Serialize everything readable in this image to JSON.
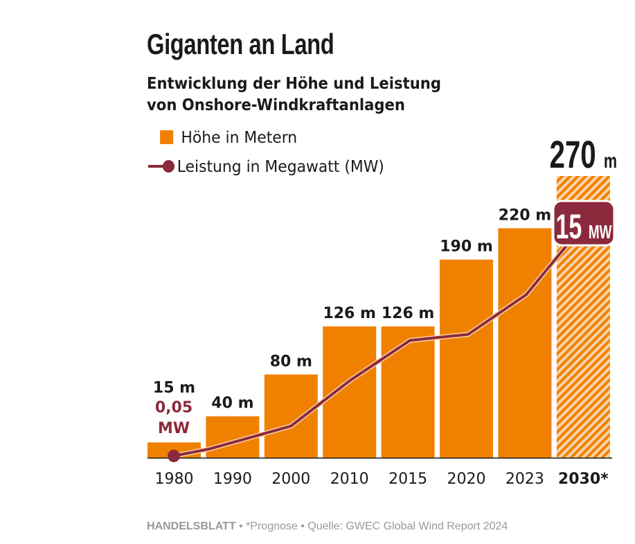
{
  "title": "Giganten an Land",
  "subtitle_line1": "Entwicklung der Höhe und Leistung",
  "subtitle_line2": "von Onshore-Windkraftanlagen",
  "legend": {
    "bars": "Höhe in Metern",
    "line": "Leistung in Megawatt (MW)"
  },
  "colors": {
    "bar": "#f08100",
    "line": "#8b2a3c",
    "text": "#1a1a1a"
  },
  "footer": {
    "brand": "HANDELSBLATT",
    "note": " • *Prognose • Quelle: GWEC Global Wind Report 2024"
  },
  "chart_data": {
    "type": "bar",
    "categories": [
      "1980",
      "1990",
      "2000",
      "2010",
      "2015",
      "2020",
      "2023",
      "2030*"
    ],
    "series": [
      {
        "name": "Höhe in Metern",
        "type": "bar",
        "values": [
          15,
          40,
          80,
          126,
          126,
          190,
          220,
          270
        ],
        "labels": [
          "15 m",
          "40 m",
          "80 m",
          "126 m",
          "126 m",
          "190 m",
          "220 m",
          "270 m"
        ],
        "forecast_index": 7
      },
      {
        "name": "Leistung in Megawatt (MW)",
        "type": "line",
        "values": [
          0.05,
          0.5,
          2,
          5,
          7.6,
          8,
          10.6,
          15
        ],
        "labels": {
          "first_value": "0,05",
          "first_unit": "MW",
          "last_value": "15",
          "last_unit": "MW"
        }
      }
    ],
    "ylim": [
      0,
      270
    ],
    "grid": false
  }
}
